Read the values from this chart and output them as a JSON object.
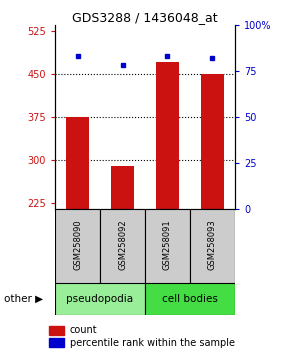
{
  "title": "GDS3288 / 1436048_at",
  "samples": [
    "GSM258090",
    "GSM258092",
    "GSM258091",
    "GSM258093"
  ],
  "counts": [
    375,
    290,
    470,
    450
  ],
  "percentiles": [
    83,
    78,
    83,
    82
  ],
  "ylim_left": [
    215,
    535
  ],
  "yticks_left": [
    225,
    300,
    375,
    450,
    525
  ],
  "ylim_right": [
    0,
    100
  ],
  "yticks_right": [
    0,
    25,
    50,
    75,
    100
  ],
  "bar_color": "#cc1111",
  "dot_color": "#0000cc",
  "bar_bottom": 215,
  "groups": [
    {
      "label": "pseudopodia",
      "color": "#99ee99",
      "samples": [
        0,
        1
      ]
    },
    {
      "label": "cell bodies",
      "color": "#44dd44",
      "samples": [
        2,
        3
      ]
    }
  ],
  "tick_label_color_left": "#cc1111",
  "tick_label_color_right": "#0000cc",
  "grid_lines_at": [
    300,
    375,
    450
  ],
  "sample_box_color": "#cccccc",
  "plot_bg": "#ffffff"
}
